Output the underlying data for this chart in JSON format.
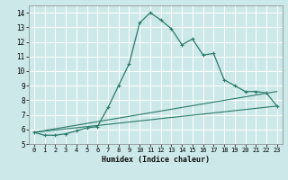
{
  "xlabel": "Humidex (Indice chaleur)",
  "bg_color": "#cce8e8",
  "grid_color": "#ffffff",
  "line_color": "#2a7a6a",
  "xlim": [
    -0.5,
    23.5
  ],
  "ylim": [
    5,
    14.5
  ],
  "xticks": [
    0,
    1,
    2,
    3,
    4,
    5,
    6,
    7,
    8,
    9,
    10,
    11,
    12,
    13,
    14,
    15,
    16,
    17,
    18,
    19,
    20,
    21,
    22,
    23
  ],
  "yticks": [
    5,
    6,
    7,
    8,
    9,
    10,
    11,
    12,
    13,
    14
  ],
  "series1_x": [
    0,
    1,
    2,
    3,
    4,
    5,
    6,
    7,
    8,
    9,
    10,
    11,
    12,
    13,
    14,
    15,
    16,
    17,
    18,
    19,
    20,
    21,
    22,
    23
  ],
  "series1_y": [
    5.8,
    5.6,
    5.6,
    5.7,
    5.9,
    6.1,
    6.2,
    7.5,
    9.0,
    10.5,
    13.3,
    14.0,
    13.5,
    12.9,
    11.8,
    12.2,
    11.1,
    11.2,
    9.4,
    9.0,
    8.6,
    8.6,
    8.5,
    7.6
  ],
  "series2_x": [
    0,
    23
  ],
  "series2_y": [
    5.8,
    7.6
  ],
  "series3_x": [
    0,
    23
  ],
  "series3_y": [
    5.8,
    8.6
  ],
  "xlabel_fontsize": 6.0,
  "tick_fontsize": 5.0
}
